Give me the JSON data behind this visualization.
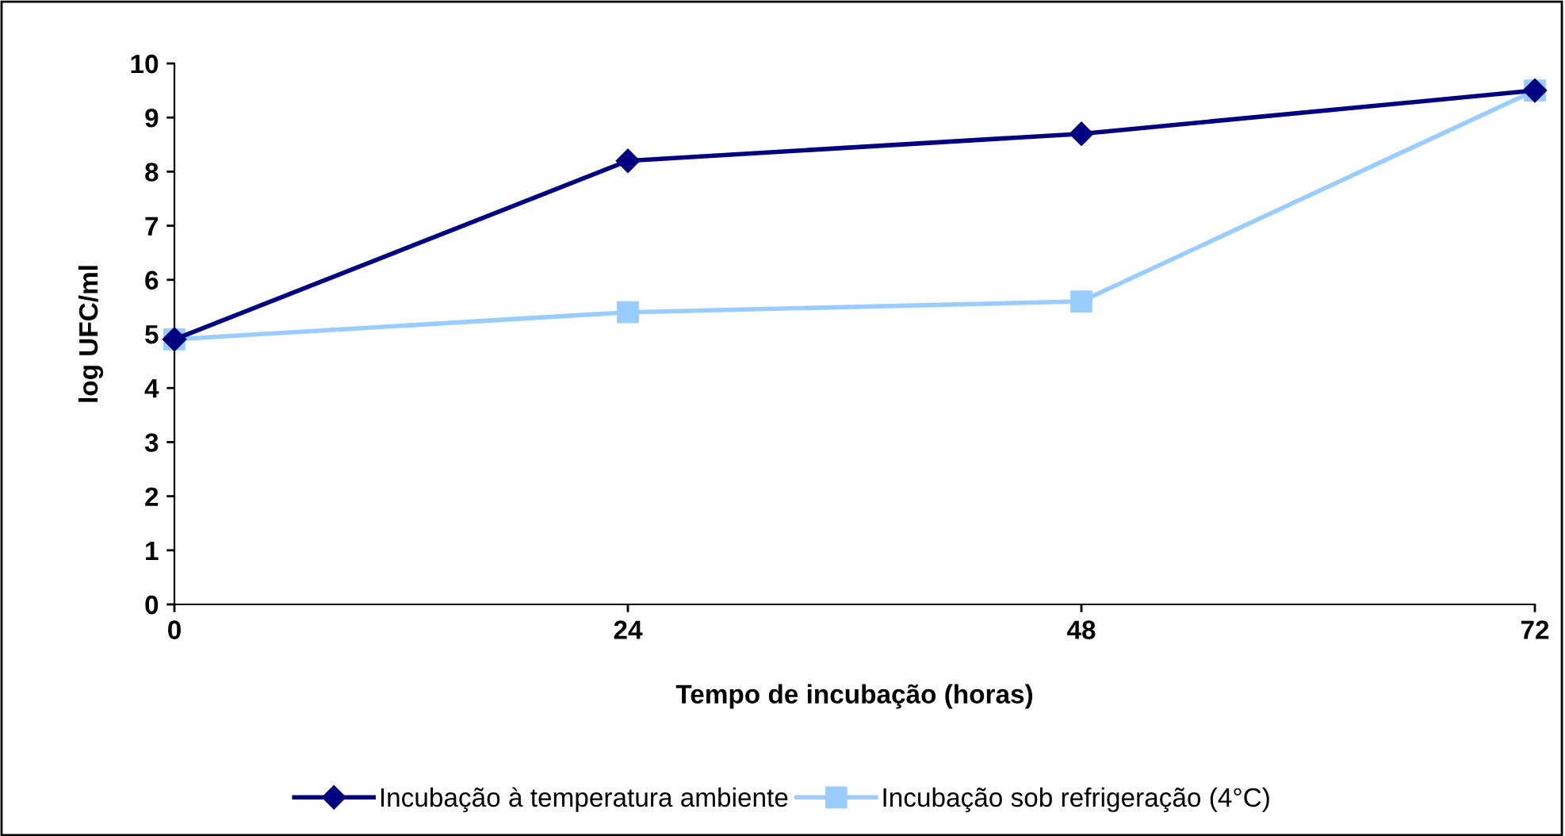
{
  "chart_data": {
    "type": "line",
    "xlabel": "Tempo de incubação (horas)",
    "ylabel": "log UFC/ml",
    "x": [
      0,
      24,
      48,
      72
    ],
    "series": [
      {
        "name": "Incubação à temperatura ambiente",
        "color": "#000080",
        "marker": "diamond",
        "values": [
          4.9,
          8.2,
          8.7,
          9.5
        ]
      },
      {
        "name": "Incubação sob refrigeração (4°C)",
        "color": "#99ccff",
        "marker": "square",
        "values": [
          4.9,
          5.4,
          5.6,
          9.5
        ]
      }
    ],
    "xlim": [
      0,
      72
    ],
    "xticks": [
      0,
      24,
      48,
      72
    ],
    "ylim": [
      0,
      10
    ],
    "yticks": [
      0,
      1,
      2,
      3,
      4,
      5,
      6,
      7,
      8,
      9,
      10
    ],
    "grid": false,
    "legend": "bottom"
  }
}
